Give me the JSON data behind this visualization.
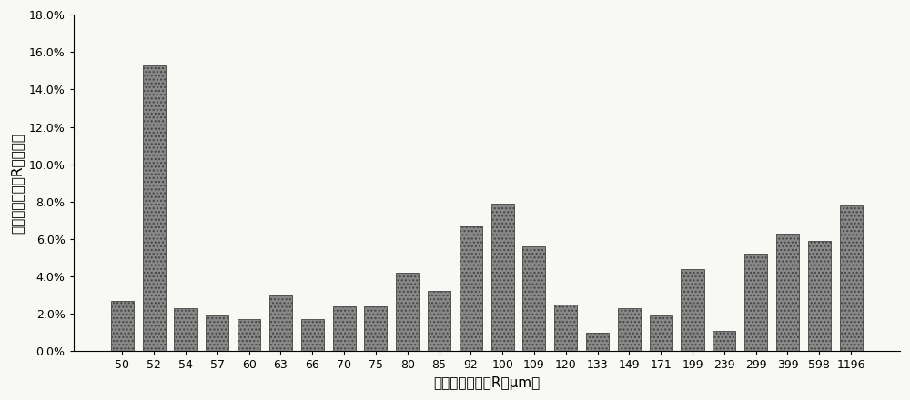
{
  "categories": [
    "50",
    "52",
    "54",
    "57",
    "60",
    "63",
    "66",
    "70",
    "75",
    "80",
    "85",
    "92",
    "100",
    "109",
    "120",
    "133",
    "149",
    "171",
    "199",
    "239",
    "299",
    "399",
    "598",
    "1196"
  ],
  "values": [
    2.7,
    15.3,
    2.3,
    1.9,
    1.7,
    3.0,
    1.7,
    2.4,
    2.4,
    4.2,
    3.2,
    6.7,
    7.9,
    5.6,
    2.5,
    1.0,
    2.3,
    1.9,
    4.4,
    1.1,
    5.2,
    6.3,
    5.9,
    7.8
  ],
  "bar_color": "#888888",
  "bar_hatch": "....",
  "xlabel": "对应的毛细孔径R（μm）",
  "ylabel": "对应的毛细孔径R占的比率",
  "ylim": [
    0,
    18.0
  ],
  "yticks": [
    0.0,
    2.0,
    4.0,
    6.0,
    8.0,
    10.0,
    12.0,
    14.0,
    16.0,
    18.0
  ],
  "ytick_labels": [
    "0.0%",
    "2.0%",
    "4.0%",
    "6.0%",
    "8.0%",
    "10.0%",
    "12.0%",
    "14.0%",
    "16.0%",
    "18.0%"
  ],
  "background_color": "#f8f8f5",
  "bar_edge_color": "#444444",
  "bar_edge_width": 0.6,
  "tick_fontsize": 9,
  "label_fontsize": 11
}
